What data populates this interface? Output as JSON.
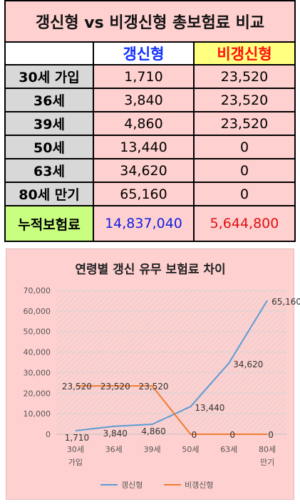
{
  "table": {
    "title": "갱신형 vs 비갱신형 총보험료 비교",
    "header": {
      "col_a": "갱신형",
      "col_b": "비갱신형"
    },
    "rows": [
      {
        "label": "30세 가입",
        "a": "1,710",
        "b": "23,520"
      },
      {
        "label": "36세",
        "a": "3,840",
        "b": "23,520"
      },
      {
        "label": "39세",
        "a": "4,860",
        "b": "23,520"
      },
      {
        "label": "50세",
        "a": "13,440",
        "b": "0"
      },
      {
        "label": "63세",
        "a": "34,620",
        "b": "0"
      },
      {
        "label": "80세 만기",
        "a": "65,160",
        "b": "0"
      }
    ],
    "total": {
      "label": "누적보험료",
      "a": "14,837,040",
      "b": "5,644,800"
    }
  },
  "chart_data": {
    "type": "line",
    "title": "연령별 갱신 유무 보험료 차이",
    "categories": [
      [
        "30세",
        "가입"
      ],
      [
        "36세"
      ],
      [
        "39세"
      ],
      [
        "50세"
      ],
      [
        "63세"
      ],
      [
        "80세",
        "만기"
      ]
    ],
    "series": [
      {
        "name": "갱신형",
        "color": "#5b9bd5",
        "values": [
          1710,
          3840,
          4860,
          13440,
          34620,
          65160
        ],
        "labels": [
          "1,710",
          "3,840",
          "4,860",
          "13,440",
          "34,620",
          "65,160"
        ]
      },
      {
        "name": "비갱신형",
        "color": "#ed7d31",
        "values": [
          23520,
          23520,
          23520,
          0,
          0,
          0
        ],
        "labels": [
          "23,520",
          "23,520",
          "23,520",
          "0",
          "0",
          "0"
        ]
      }
    ],
    "ylim": [
      0,
      70000
    ],
    "yticks": [
      "0",
      "10,000",
      "20,000",
      "30,000",
      "40,000",
      "50,000",
      "60,000",
      "70,000"
    ],
    "xlabel": "",
    "ylabel": "",
    "grid": true,
    "legend": "bottom"
  }
}
